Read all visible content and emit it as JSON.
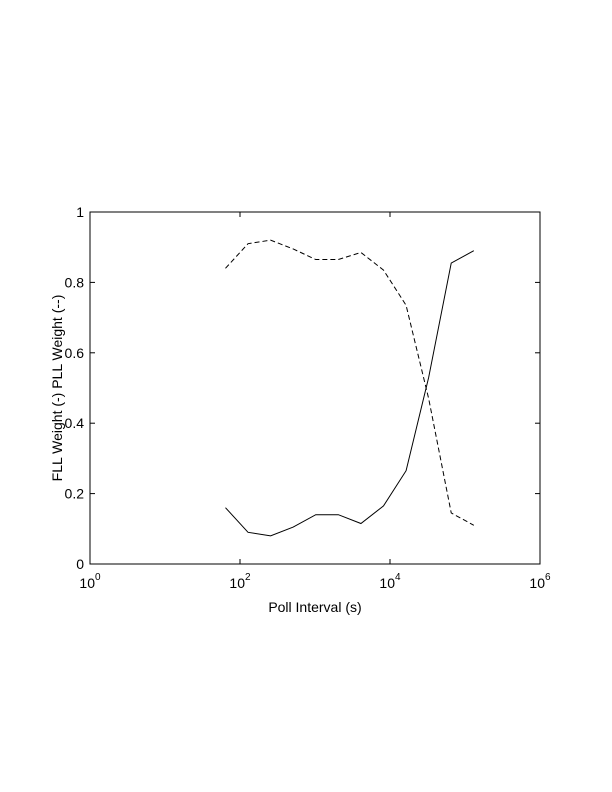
{
  "chart_data": {
    "type": "line",
    "x_label": "Poll Interval (s)",
    "y_label": "FLL Weight (-) PLL Weight (--)",
    "x": [
      64,
      128,
      256,
      512,
      1024,
      2048,
      4096,
      8192,
      16384,
      32768,
      65536,
      131072
    ],
    "series": [
      {
        "color": "#000000",
        "linestyle": "-",
        "values": [
          0.16,
          0.09,
          0.08,
          0.105,
          0.14,
          0.14,
          0.115,
          0.165,
          0.265,
          0.53,
          0.855,
          0.89
        ]
      },
      {
        "color": "#000000",
        "linestyle": "--",
        "values": [
          0.84,
          0.91,
          0.92,
          0.895,
          0.865,
          0.865,
          0.885,
          0.835,
          0.735,
          0.47,
          0.145,
          0.11
        ]
      }
    ],
    "x_log": true,
    "xlim": [
      1,
      1000000
    ],
    "xticks": [
      {
        "value": 1,
        "label": "10",
        "exponent": "0"
      },
      {
        "value": 100,
        "label": "10",
        "exponent": "2"
      },
      {
        "value": 10000,
        "label": "10",
        "exponent": "4"
      },
      {
        "value": 1000000,
        "label": "10",
        "exponent": "6"
      }
    ],
    "ylim": [
      0,
      1
    ],
    "yticks": [
      0,
      0.2,
      0.4,
      0.6,
      0.8,
      1
    ],
    "grid": false
  }
}
